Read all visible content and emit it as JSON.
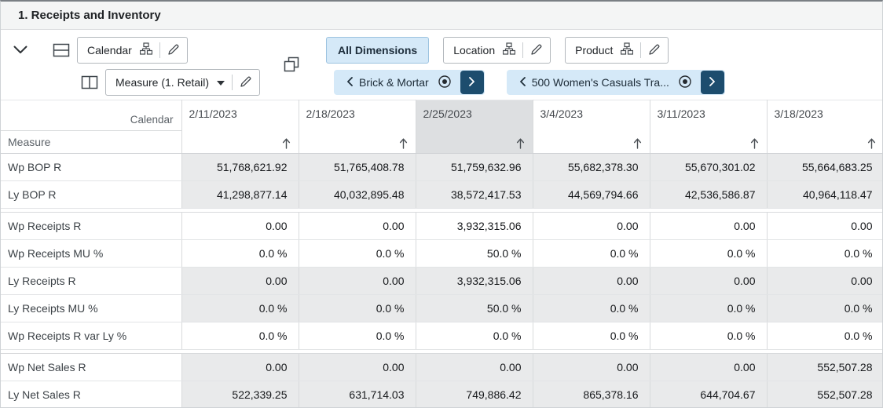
{
  "title": "1. Receipts and Inventory",
  "colors": {
    "accent_navy": "#1d4d6e",
    "accent_light_blue": "#d5e9f8",
    "shaded_row": "#e9eaeb",
    "selected_column_header": "#dddfe1"
  },
  "toolbar": {
    "columns_axis_tile": {
      "label": "Calendar"
    },
    "rows_axis_tile": {
      "label": "Measure (1. Retail)"
    },
    "all_dimensions_label": "All Dimensions",
    "location_tile": {
      "label": "Location"
    },
    "product_tile": {
      "label": "Product"
    },
    "location_pager": {
      "label": "Brick & Mortar"
    },
    "product_pager": {
      "label": "500 Women's Casuals Tra..."
    }
  },
  "table": {
    "columns_axis_label": "Calendar",
    "rows_axis_label": "Measure",
    "selected_column": 2,
    "columns": [
      "2/11/2023",
      "2/18/2023",
      "2/25/2023",
      "3/4/2023",
      "3/11/2023",
      "3/18/2023"
    ],
    "rows": [
      {
        "label": "Wp BOP R",
        "shaded": true,
        "sep_before": false,
        "values": [
          "51,768,621.92",
          "51,765,408.78",
          "51,759,632.96",
          "55,682,378.30",
          "55,670,301.02",
          "55,664,683.25"
        ]
      },
      {
        "label": "Ly BOP R",
        "shaded": true,
        "sep_before": false,
        "values": [
          "41,298,877.14",
          "40,032,895.48",
          "38,572,417.53",
          "44,569,794.66",
          "42,536,586.87",
          "40,964,118.47"
        ]
      },
      {
        "label": "Wp Receipts R",
        "shaded": false,
        "sep_before": true,
        "values": [
          "0.00",
          "0.00",
          "3,932,315.06",
          "0.00",
          "0.00",
          "0.00"
        ]
      },
      {
        "label": "Wp Receipts MU %",
        "shaded": false,
        "sep_before": false,
        "values": [
          "0.0 %",
          "0.0 %",
          "50.0 %",
          "0.0 %",
          "0.0 %",
          "0.0 %"
        ]
      },
      {
        "label": "Ly Receipts R",
        "shaded": true,
        "sep_before": false,
        "values": [
          "0.00",
          "0.00",
          "3,932,315.06",
          "0.00",
          "0.00",
          "0.00"
        ]
      },
      {
        "label": "Ly Receipts MU %",
        "shaded": true,
        "sep_before": false,
        "values": [
          "0.0 %",
          "0.0 %",
          "50.0 %",
          "0.0 %",
          "0.0 %",
          "0.0 %"
        ]
      },
      {
        "label": "Wp Receipts R var Ly %",
        "shaded": false,
        "sep_before": false,
        "values": [
          "0.0 %",
          "0.0 %",
          "0.0 %",
          "0.0 %",
          "0.0 %",
          "0.0 %"
        ]
      },
      {
        "label": "Wp Net Sales R",
        "shaded": true,
        "sep_before": true,
        "values": [
          "0.00",
          "0.00",
          "0.00",
          "0.00",
          "0.00",
          "552,507.28"
        ]
      },
      {
        "label": "Ly Net Sales R",
        "shaded": true,
        "sep_before": false,
        "values": [
          "522,339.25",
          "631,714.03",
          "749,886.42",
          "865,378.16",
          "644,704.67",
          "552,507.28"
        ]
      }
    ]
  }
}
